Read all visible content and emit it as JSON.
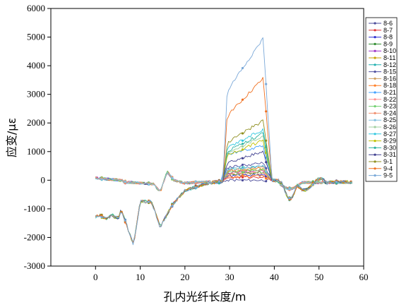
{
  "chart_data": {
    "type": "line",
    "title": "",
    "xlabel": "孔内光纤长度/m",
    "ylabel": "应变/με",
    "xlim": [
      -10,
      60
    ],
    "ylim": [
      -3000,
      6000
    ],
    "xticks": [
      0,
      10,
      20,
      30,
      40,
      50,
      60
    ],
    "yticks": [
      -3000,
      -2000,
      -1000,
      0,
      1000,
      2000,
      3000,
      4000,
      5000,
      6000
    ],
    "grid": false,
    "legend_position": "right",
    "legend": [
      "8-6",
      "8-7",
      "8-8",
      "8-9",
      "8-10",
      "8-11",
      "8-12",
      "8-15",
      "8-16",
      "8-18",
      "8-21",
      "8-22",
      "8-23",
      "8-24",
      "8-25",
      "8-26",
      "8-27",
      "8-29",
      "8-30",
      "8-31",
      "9-1",
      "9-4",
      "9-5"
    ],
    "series": [
      {
        "name": "8-6",
        "color": "#4b4b9a",
        "group": "upper",
        "peak": 0
      },
      {
        "name": "8-7",
        "color": "#e03030",
        "group": "upper",
        "peak": 120
      },
      {
        "name": "8-8",
        "color": "#3030d0",
        "group": "upper",
        "peak": 200
      },
      {
        "name": "8-9",
        "color": "#2e8b2e",
        "group": "upper",
        "peak": 280
      },
      {
        "name": "8-10",
        "color": "#9b30c8",
        "group": "upper",
        "peak": 350
      },
      {
        "name": "8-11",
        "color": "#c8a000",
        "group": "upper",
        "peak": 420
      },
      {
        "name": "8-12",
        "color": "#20b0b0",
        "group": "upper",
        "peak": 500
      },
      {
        "name": "8-15",
        "color": "#5050a0",
        "group": "upper",
        "peak": 600
      },
      {
        "name": "8-16",
        "color": "#d0a060",
        "group": "upper",
        "peak": 250
      },
      {
        "name": "8-18",
        "color": "#ff7f27",
        "group": "upper",
        "peak": 150
      },
      {
        "name": "8-21",
        "color": "#40a0ff",
        "group": "upper",
        "peak": 1200
      },
      {
        "name": "8-22",
        "color": "#ff9090",
        "group": "upper",
        "peak": 320
      },
      {
        "name": "8-23",
        "color": "#70d070",
        "group": "upper",
        "peak": 380
      },
      {
        "name": "8-24",
        "color": "#f09070",
        "group": "upper",
        "peak": 450
      },
      {
        "name": "8-25",
        "color": "#80c0e0",
        "group": "upper",
        "peak": 520
      },
      {
        "name": "8-26",
        "color": "#a0d0a0",
        "group": "lower",
        "peak": 1550
      },
      {
        "name": "8-27",
        "color": "#30c8e0",
        "group": "lower",
        "peak": 1800
      },
      {
        "name": "8-29",
        "color": "#c0c000",
        "group": "lower",
        "peak": 1400
      },
      {
        "name": "8-30",
        "color": "#2fb3a0",
        "group": "lower",
        "peak": 1650
      },
      {
        "name": "8-31",
        "color": "#404090",
        "group": "lower",
        "peak": 1000
      },
      {
        "name": "9-1",
        "color": "#8f8f20",
        "group": "lower",
        "peak": 2100
      },
      {
        "name": "9-4",
        "color": "#f07020",
        "group": "lower",
        "peak": 3600
      },
      {
        "name": "9-5",
        "color": "#7aa8d8",
        "group": "lower",
        "peak": 5000
      }
    ]
  }
}
